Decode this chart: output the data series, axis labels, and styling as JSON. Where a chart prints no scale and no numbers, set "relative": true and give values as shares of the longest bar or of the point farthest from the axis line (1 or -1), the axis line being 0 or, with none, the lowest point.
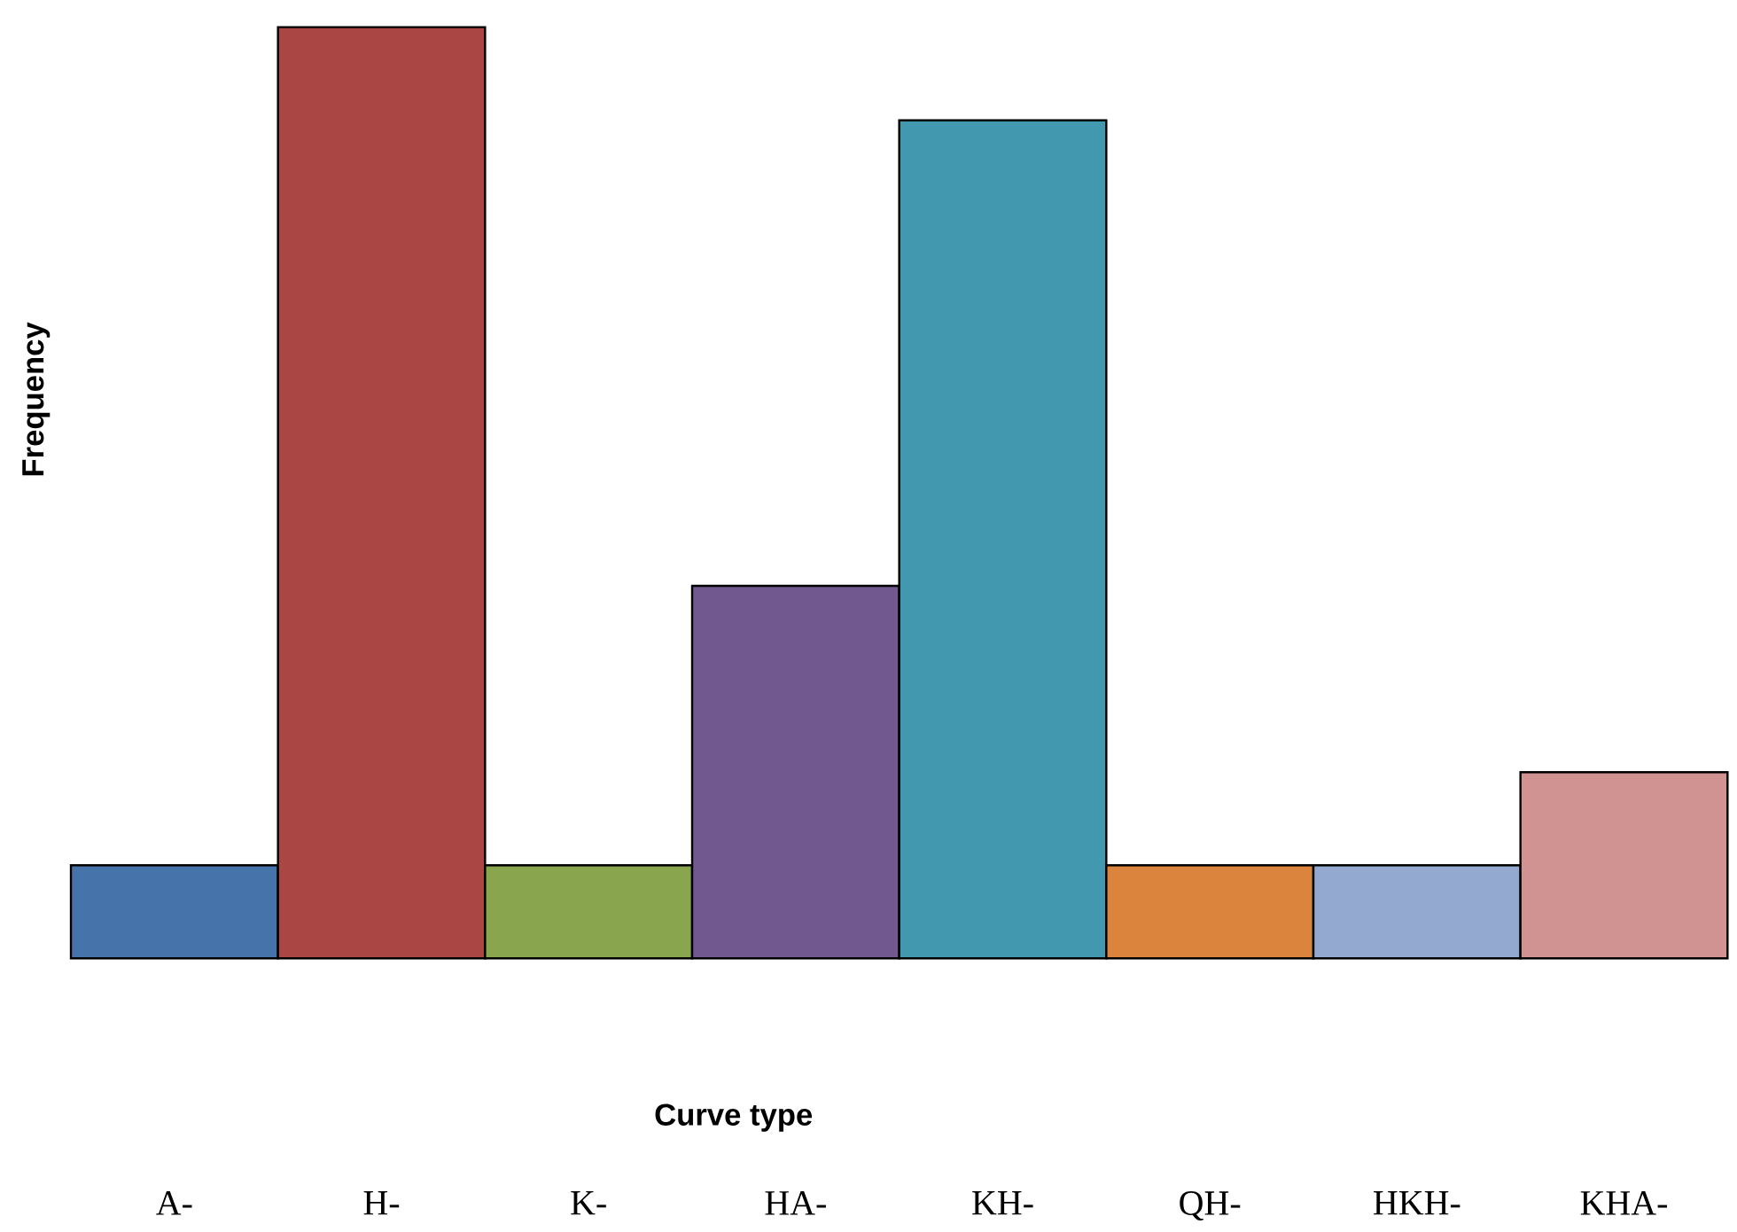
{
  "chart_data": {
    "type": "bar",
    "relative": true,
    "xlabel": "Curve type",
    "ylabel": "Frequency",
    "categories": [
      "A-",
      "H-",
      "K-",
      "HA-",
      "KH-",
      "QH-",
      "HKH-",
      "KHA-"
    ],
    "values": [
      0.1,
      1,
      0.1,
      0.4,
      0.9,
      0.1,
      0.1,
      0.2
    ],
    "colors": [
      "#4674aa",
      "#aa4744",
      "#89a54e",
      "#71588f",
      "#4198af",
      "#db843d",
      "#93a9cf",
      "#d19392"
    ]
  }
}
